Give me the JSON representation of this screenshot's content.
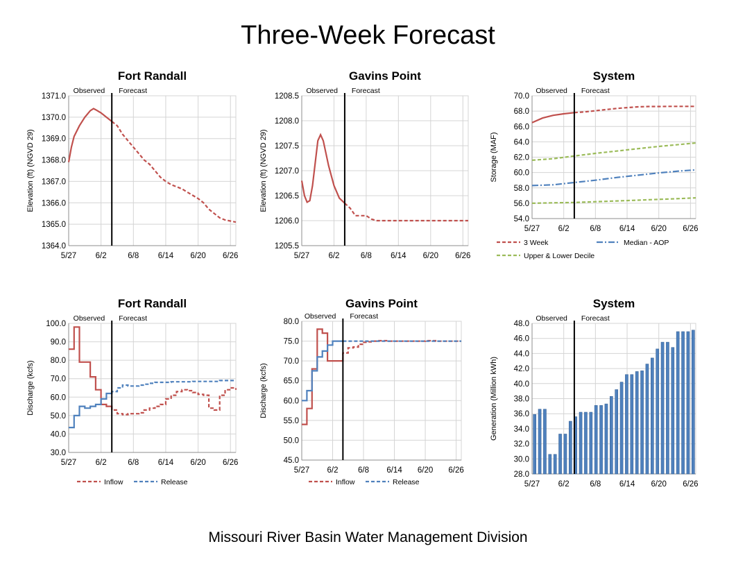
{
  "title": "Three-Week Forecast",
  "footer": "Missouri River Basin Water Management Division",
  "x_ticks": [
    "5/27",
    "6/2",
    "6/8",
    "6/14",
    "6/20",
    "6/26"
  ],
  "annotations": {
    "observed": "Observed",
    "forecast": "Forecast"
  },
  "colors": {
    "red": "#c0504d",
    "blue": "#4f81bd",
    "green": "#9bbb59",
    "grid": "#d4d4d4",
    "axis": "#8c8c8c"
  },
  "chart_data": [
    {
      "id": "fr-elev",
      "type": "line",
      "title": "Fort Randall",
      "ylabel": "Elevation (ft) (NGVD 29)",
      "xlim": [
        0,
        31
      ],
      "ylim": [
        1364.0,
        1371.0
      ],
      "ystep": 1.0,
      "ydec": 1,
      "forecast_start": 8,
      "legend": [],
      "series": [
        {
          "name": "",
          "color": "red",
          "dash": "mixed",
          "dash_start": 8,
          "x": [
            0,
            0.5,
            1,
            2,
            3,
            4,
            4.6,
            5,
            6,
            7,
            8,
            9,
            10,
            11,
            12,
            13,
            14,
            15,
            16,
            17,
            18,
            19,
            20,
            21,
            22,
            23,
            24,
            25,
            26,
            27,
            28,
            29,
            30,
            31
          ],
          "y": [
            1367.9,
            1368.6,
            1369.1,
            1369.6,
            1370.0,
            1370.3,
            1370.4,
            1370.35,
            1370.2,
            1370.0,
            1369.8,
            1369.6,
            1369.2,
            1368.9,
            1368.6,
            1368.3,
            1368.0,
            1367.8,
            1367.5,
            1367.2,
            1367.0,
            1366.85,
            1366.75,
            1366.65,
            1366.5,
            1366.35,
            1366.2,
            1366.0,
            1365.7,
            1365.5,
            1365.3,
            1365.2,
            1365.15,
            1365.1
          ]
        }
      ]
    },
    {
      "id": "gp-elev",
      "type": "line",
      "title": "Gavins Point",
      "ylabel": "Elevation (ft) (NGVD 29)",
      "xlim": [
        0,
        31
      ],
      "ylim": [
        1205.5,
        1208.5
      ],
      "ystep": 0.5,
      "ydec": 1,
      "forecast_start": 8,
      "legend": [],
      "series": [
        {
          "name": "",
          "color": "red",
          "dash": "mixed",
          "dash_start": 8,
          "x": [
            0,
            0.5,
            1,
            1.5,
            2,
            3,
            3.5,
            4,
            5,
            6,
            7,
            8,
            9,
            10,
            11,
            12,
            13,
            14,
            15,
            16,
            18,
            20,
            22,
            24,
            26,
            28,
            30,
            31
          ],
          "y": [
            1206.8,
            1206.5,
            1206.37,
            1206.4,
            1206.7,
            1207.6,
            1207.72,
            1207.6,
            1207.1,
            1206.7,
            1206.45,
            1206.35,
            1206.25,
            1206.1,
            1206.1,
            1206.1,
            1206.03,
            1206.0,
            1206.0,
            1206.0,
            1206.0,
            1206.0,
            1206.0,
            1206.0,
            1206.0,
            1206.0,
            1206.0,
            1206.0
          ]
        }
      ]
    },
    {
      "id": "sys-storage",
      "type": "line",
      "title": "System",
      "ylabel": "Storage (MAF)",
      "xlim": [
        0,
        31
      ],
      "ylim": [
        54.0,
        70.0
      ],
      "ystep": 2.0,
      "ydec": 1,
      "forecast_start": 8,
      "legend": [
        {
          "label": "3 Week",
          "color": "red",
          "dash": "dashed"
        },
        {
          "label": "Median - AOP",
          "color": "blue",
          "dash": "dashdot"
        },
        {
          "label": "Upper & Lower Decile",
          "color": "green",
          "dash": "dashed"
        }
      ],
      "series": [
        {
          "name": "3 Week",
          "color": "red",
          "dash": "mixed",
          "dash_start": 8,
          "x": [
            0,
            2,
            4,
            6,
            8,
            10,
            12,
            14,
            16,
            18,
            20,
            22,
            24,
            26,
            28,
            31
          ],
          "y": [
            66.5,
            67.1,
            67.45,
            67.65,
            67.8,
            67.9,
            68.05,
            68.2,
            68.35,
            68.45,
            68.55,
            68.6,
            68.6,
            68.62,
            68.62,
            68.62
          ]
        },
        {
          "name": "Median - AOP",
          "color": "blue",
          "dash": "dashdot",
          "x": [
            0,
            4,
            8,
            12,
            16,
            20,
            24,
            28,
            31
          ],
          "y": [
            58.3,
            58.4,
            58.7,
            59.0,
            59.35,
            59.65,
            59.95,
            60.2,
            60.35
          ]
        },
        {
          "name": "Upper Decile",
          "color": "green",
          "dash": "dashed",
          "x": [
            0,
            4,
            8,
            12,
            16,
            20,
            24,
            28,
            31
          ],
          "y": [
            61.6,
            61.8,
            62.15,
            62.5,
            62.8,
            63.1,
            63.4,
            63.65,
            63.85
          ]
        },
        {
          "name": "Lower Decile",
          "color": "green",
          "dash": "dashed",
          "x": [
            0,
            4,
            8,
            12,
            16,
            20,
            24,
            28,
            31
          ],
          "y": [
            56.0,
            56.05,
            56.1,
            56.2,
            56.3,
            56.4,
            56.5,
            56.6,
            56.7
          ]
        }
      ]
    },
    {
      "id": "fr-discharge",
      "type": "line",
      "title": "Fort Randall",
      "ylabel": "Discharge (kcfs)",
      "xlim": [
        0,
        31
      ],
      "ylim": [
        30.0,
        100.0
      ],
      "ystep": 10.0,
      "ydec": 1,
      "forecast_start": 8,
      "legend": [
        {
          "label": "Inflow",
          "color": "red",
          "dash": "dashed"
        },
        {
          "label": "Release",
          "color": "blue",
          "dash": "dashed"
        }
      ],
      "series": [
        {
          "name": "Inflow",
          "color": "red",
          "dash": "mixed",
          "dash_start": 8,
          "step": true,
          "x": [
            0,
            1,
            2,
            4,
            5,
            6,
            7,
            8,
            9,
            10,
            11,
            12,
            13,
            14,
            15,
            16,
            17,
            18,
            19,
            20,
            21,
            22,
            23,
            24,
            25,
            26,
            27,
            28,
            29,
            30,
            31
          ],
          "y": [
            86,
            98,
            79,
            71,
            64,
            56,
            55,
            53,
            51,
            50.5,
            51,
            51,
            51.5,
            53,
            54,
            55,
            56,
            59,
            61,
            63,
            64,
            63.5,
            62.5,
            61.5,
            61,
            54,
            53,
            61,
            64,
            65,
            64
          ]
        },
        {
          "name": "Release",
          "color": "blue",
          "dash": "mixed",
          "dash_start": 8,
          "step": true,
          "x": [
            0,
            1,
            2,
            3,
            4,
            5,
            6,
            7,
            8,
            9,
            10,
            11,
            12,
            13,
            14,
            15,
            16,
            17,
            18,
            19,
            20,
            21,
            22,
            23,
            24,
            25,
            26,
            27,
            28,
            29,
            30,
            31
          ],
          "y": [
            43.5,
            50,
            55,
            54,
            55,
            56,
            59,
            62,
            63,
            65,
            66.5,
            66,
            66,
            66.5,
            67,
            67.5,
            68,
            68,
            68,
            68.3,
            68.3,
            68.3,
            68.3,
            68.5,
            68.5,
            68.5,
            68.5,
            68.5,
            69,
            69,
            69,
            69
          ]
        }
      ]
    },
    {
      "id": "gp-discharge",
      "type": "line",
      "title": "Gavins Point",
      "ylabel": "Discharge (kcfs)",
      "xlim": [
        0,
        31
      ],
      "ylim": [
        45.0,
        80.0
      ],
      "ystep": 5.0,
      "ydec": 1,
      "forecast_start": 8,
      "legend": [
        {
          "label": "Inflow",
          "color": "red",
          "dash": "dashed"
        },
        {
          "label": "Release",
          "color": "blue",
          "dash": "dashed"
        }
      ],
      "series": [
        {
          "name": "Inflow",
          "color": "red",
          "dash": "mixed",
          "dash_start": 8,
          "step": true,
          "x": [
            0,
            1,
            2,
            3,
            4,
            5,
            6,
            7,
            8,
            9,
            10,
            11,
            12,
            13,
            14,
            15,
            16,
            17,
            18,
            20,
            22,
            24,
            26,
            28,
            30,
            31
          ],
          "y": [
            54,
            58,
            68,
            78,
            77,
            70,
            70,
            70,
            72,
            73.3,
            73.5,
            74.2,
            74.7,
            74.8,
            75,
            75.1,
            75.1,
            75,
            75,
            75,
            75,
            75.1,
            75,
            75,
            75,
            75
          ]
        },
        {
          "name": "Release",
          "color": "blue",
          "dash": "mixed",
          "dash_start": 8,
          "step": true,
          "x": [
            0,
            1,
            2,
            3,
            4,
            5,
            6,
            8,
            10,
            12,
            14,
            16,
            18,
            20,
            22,
            24,
            26,
            28,
            30,
            31
          ],
          "y": [
            60,
            62.5,
            67.5,
            71,
            72.5,
            74,
            75,
            75,
            75,
            75,
            75,
            75,
            75,
            75,
            75,
            75,
            75,
            75,
            75,
            75
          ]
        }
      ]
    },
    {
      "id": "sys-generation",
      "type": "bar",
      "title": "System",
      "ylabel": "Generation (Million kWh)",
      "xlim": [
        0,
        31
      ],
      "ylim": [
        28.0,
        48.0
      ],
      "ystep": 2.0,
      "ydec": 1,
      "forecast_start": 8,
      "legend": [],
      "series": [
        {
          "name": "",
          "color": "blue",
          "values": [
            35.9,
            36.6,
            36.6,
            30.6,
            30.6,
            33.3,
            33.3,
            35.0,
            35.6,
            36.2,
            36.2,
            36.2,
            37.1,
            37.1,
            37.3,
            38.3,
            39.2,
            40.2,
            41.2,
            41.2,
            41.6,
            41.7,
            42.6,
            43.4,
            44.6,
            45.5,
            45.5,
            44.8,
            46.9,
            46.9,
            46.9,
            47.1
          ]
        }
      ]
    }
  ]
}
